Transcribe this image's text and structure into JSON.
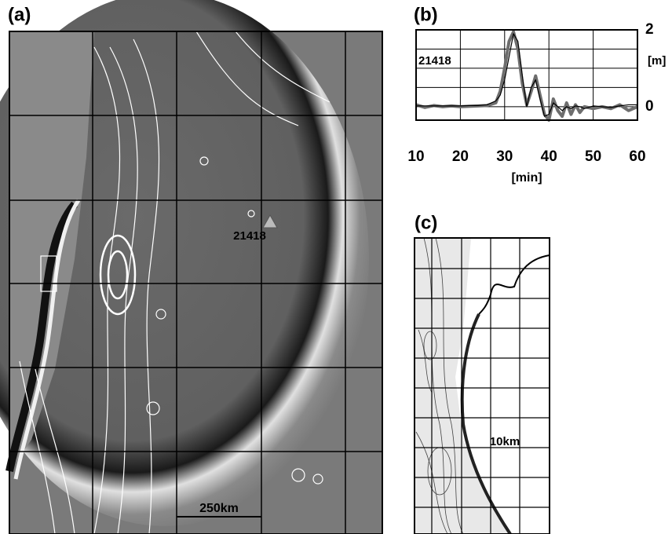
{
  "panel_a": {
    "label": "(a)",
    "station": "21418",
    "scale_label": "250km"
  },
  "panel_c": {
    "label": "(c)",
    "scale_label": "10km"
  },
  "chart_data": {
    "type": "line",
    "label": "(b)",
    "annotation": "21418",
    "y_label": "[m]",
    "x_label": "[min]",
    "x": [
      10,
      12,
      14,
      16,
      18,
      20,
      22,
      24,
      26,
      28,
      29,
      30,
      31,
      32,
      33,
      34,
      35,
      36,
      37,
      38,
      39,
      40,
      41,
      42,
      43,
      44,
      45,
      46,
      47,
      48,
      50,
      52,
      54,
      56,
      58,
      60
    ],
    "series": [
      {
        "color": "#6e6e6e",
        "width": 4,
        "values": [
          0.05,
          -0.02,
          0.03,
          0,
          0.02,
          0,
          0.01,
          0.02,
          0.03,
          0.1,
          0.4,
          1.0,
          1.7,
          1.95,
          1.5,
          0.6,
          0.05,
          0.4,
          0.8,
          0.3,
          -0.2,
          -0.35,
          0.2,
          -0.1,
          -0.25,
          0.1,
          -0.2,
          0.05,
          -0.15,
          0.0,
          -0.05,
          0.0,
          -0.05,
          0.05,
          -0.1,
          0.0
        ]
      },
      {
        "color": "#000000",
        "width": 1.2,
        "values": [
          0.02,
          0.02,
          0.02,
          0.02,
          0.02,
          0.02,
          0.03,
          0.03,
          0.05,
          0.15,
          0.3,
          0.7,
          1.3,
          1.9,
          1.7,
          0.8,
          0.0,
          0.5,
          0.7,
          0.2,
          -0.25,
          -0.2,
          0.1,
          0.0,
          -0.1,
          0.0,
          -0.05,
          0.02,
          0.0,
          -0.05,
          0.02,
          0.0,
          -0.02,
          0.02,
          0.05,
          0.05
        ]
      }
    ],
    "xlim": [
      10,
      60
    ],
    "ylim": [
      -0.35,
      2
    ],
    "xticks": [
      10,
      20,
      30,
      40,
      50,
      60
    ],
    "yticks": [
      0,
      2
    ],
    "ygrid": [
      0,
      0.5,
      1,
      1.5,
      2
    ]
  }
}
